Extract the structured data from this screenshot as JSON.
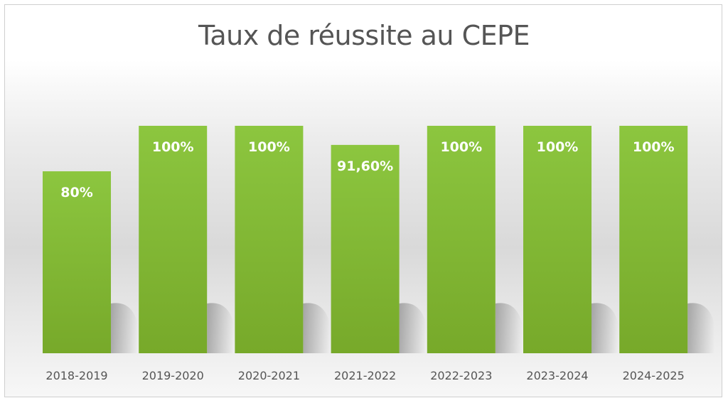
{
  "chart_data": {
    "type": "bar",
    "title": "Taux de réussite au CEPE",
    "categories": [
      "2018-2019",
      "2019-2020",
      "2020-2021",
      "2021-2022",
      "2022-2023",
      "2023-2024",
      "2024-2025"
    ],
    "values": [
      80,
      100,
      100,
      91.6,
      100,
      100,
      100
    ],
    "data_labels": [
      "80%",
      "100%",
      "100%",
      "91,60%",
      "100%",
      "100%",
      "100%"
    ],
    "ylim": [
      0,
      100
    ],
    "grid": false,
    "legend": "none",
    "bar_color": "#8cc63f",
    "bar_color_dark": "#77a92a",
    "label_color": "#ffffff",
    "tick_color": "#555555"
  }
}
